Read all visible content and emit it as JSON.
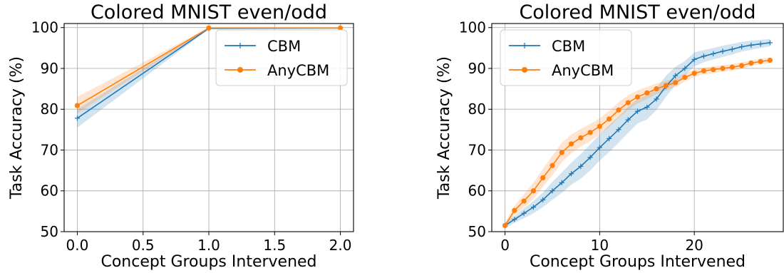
{
  "chart_data": [
    {
      "type": "line",
      "title": "Colored MNIST even/odd",
      "xlabel": "Concept Groups Intervened",
      "ylabel": "Task Accuracy (%)",
      "xlim": [
        -0.1,
        2.1
      ],
      "ylim": [
        50,
        101
      ],
      "xticks": [
        0.0,
        0.5,
        1.0,
        1.5,
        2.0
      ],
      "xtick_labels": [
        "0.0",
        "0.5",
        "1.0",
        "1.5",
        "2.0"
      ],
      "yticks": [
        50,
        60,
        70,
        80,
        90,
        100
      ],
      "ytick_labels": [
        "50",
        "60",
        "70",
        "80",
        "90",
        "100"
      ],
      "grid": true,
      "legend": "top-right",
      "series": [
        {
          "name": "CBM",
          "color": "#1f77b4",
          "marker": "plus",
          "x": [
            0,
            1,
            2
          ],
          "y": [
            77.8,
            99.8,
            99.9
          ],
          "lower": [
            75.5,
            99.6,
            99.8
          ],
          "upper": [
            80.0,
            100.0,
            100.0
          ]
        },
        {
          "name": "AnyCBM",
          "color": "#ff7f0e",
          "marker": "circle",
          "x": [
            0,
            1,
            2
          ],
          "y": [
            80.9,
            99.9,
            99.9
          ],
          "lower": [
            79.0,
            99.7,
            99.8
          ],
          "upper": [
            83.0,
            100.0,
            100.0
          ]
        }
      ]
    },
    {
      "type": "line",
      "title": "Colored MNIST even/odd",
      "xlabel": "Concept Groups Intervened",
      "ylabel": "Task Accuracy (%)",
      "xlim": [
        -1.4,
        29.4
      ],
      "ylim": [
        50,
        101
      ],
      "xticks": [
        0,
        10,
        20
      ],
      "xtick_labels": [
        "0",
        "10",
        "20"
      ],
      "yticks": [
        50,
        60,
        70,
        80,
        90,
        100
      ],
      "ytick_labels": [
        "50",
        "60",
        "70",
        "80",
        "90",
        "100"
      ],
      "grid": true,
      "legend": "top-left",
      "series": [
        {
          "name": "CBM",
          "color": "#1f77b4",
          "marker": "plus",
          "x": [
            0,
            1,
            2,
            3,
            4,
            5,
            6,
            7,
            8,
            9,
            10,
            11,
            12,
            13,
            14,
            15,
            16,
            17,
            18,
            19,
            20,
            21,
            22,
            23,
            24,
            25,
            26,
            27,
            28
          ],
          "y": [
            51.5,
            53.0,
            54.5,
            56.0,
            57.8,
            60.0,
            62.0,
            64.2,
            66.0,
            68.2,
            70.6,
            72.8,
            75.0,
            77.4,
            79.5,
            80.5,
            82.5,
            85.6,
            88.2,
            90.0,
            92.2,
            93.0,
            93.6,
            94.2,
            94.7,
            95.3,
            95.7,
            96.0,
            96.3
          ],
          "lower": [
            50.8,
            52.2,
            53.3,
            54.5,
            56.0,
            57.8,
            59.5,
            61.5,
            63.0,
            65.0,
            67.4,
            69.5,
            71.8,
            74.2,
            76.5,
            77.5,
            79.8,
            83.0,
            86.0,
            88.2,
            90.5,
            91.5,
            92.2,
            92.8,
            93.4,
            94.1,
            94.6,
            95.0,
            95.4
          ],
          "upper": [
            52.2,
            53.8,
            55.7,
            57.5,
            59.6,
            62.2,
            64.5,
            66.9,
            69.0,
            71.4,
            73.8,
            76.1,
            78.2,
            80.6,
            82.5,
            83.5,
            85.2,
            88.2,
            90.4,
            91.8,
            93.9,
            94.5,
            95.0,
            95.6,
            96.0,
            96.5,
            96.8,
            97.0,
            97.2
          ]
        },
        {
          "name": "AnyCBM",
          "color": "#ff7f0e",
          "marker": "circle",
          "x": [
            0,
            1,
            2,
            3,
            4,
            5,
            6,
            7,
            8,
            9,
            10,
            11,
            12,
            13,
            14,
            15,
            16,
            17,
            18,
            19,
            20,
            21,
            22,
            23,
            24,
            25,
            26,
            27,
            28
          ],
          "y": [
            51.5,
            55.2,
            57.5,
            60.0,
            63.2,
            66.2,
            69.4,
            71.5,
            73.0,
            74.3,
            75.8,
            77.6,
            79.8,
            81.6,
            83.0,
            84.0,
            85.0,
            85.8,
            86.5,
            87.8,
            88.8,
            89.4,
            89.7,
            90.0,
            90.3,
            90.7,
            91.3,
            91.7,
            92.0
          ],
          "lower": [
            50.8,
            54.0,
            55.8,
            58.0,
            61.0,
            63.8,
            67.0,
            69.2,
            70.8,
            72.2,
            73.8,
            75.6,
            77.9,
            79.8,
            81.4,
            82.5,
            83.7,
            84.6,
            85.4,
            86.8,
            87.9,
            88.6,
            88.9,
            89.2,
            89.5,
            89.9,
            90.6,
            91.0,
            91.3
          ],
          "upper": [
            52.2,
            56.4,
            59.2,
            62.0,
            65.4,
            68.6,
            71.8,
            73.8,
            75.2,
            76.4,
            77.8,
            79.6,
            81.7,
            83.4,
            84.6,
            85.5,
            86.3,
            87.0,
            87.6,
            88.8,
            89.7,
            90.2,
            90.5,
            90.8,
            91.1,
            91.5,
            92.0,
            92.4,
            92.7
          ]
        }
      ]
    }
  ]
}
